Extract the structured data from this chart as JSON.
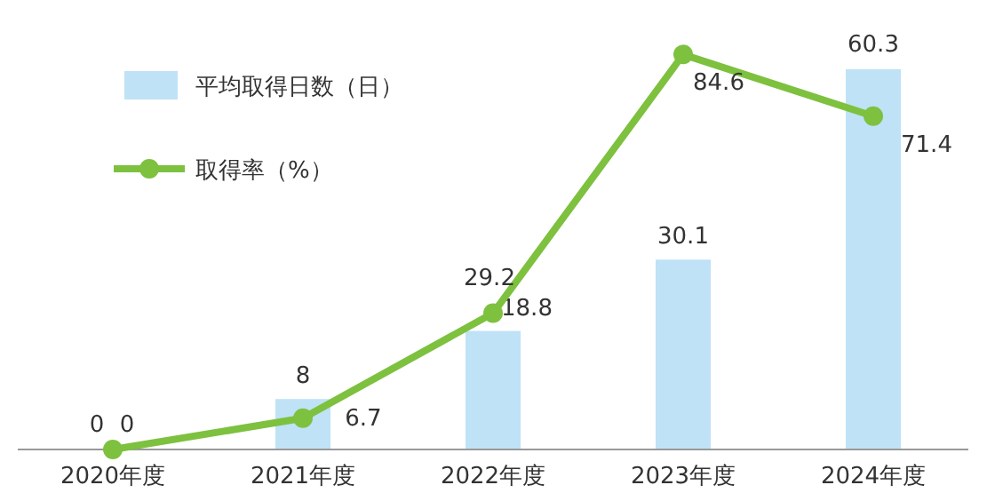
{
  "chart_data": {
    "type": "bar",
    "categories": [
      "2020年度",
      "2021年度",
      "2022年度",
      "2023年度",
      "2024年度"
    ],
    "series": [
      {
        "name": "平均取得日数（日）",
        "color": "#bfe2f6",
        "values": [
          0,
          8,
          18.8,
          30.1,
          60.3
        ]
      },
      {
        "name": "取得率（%）",
        "type": "line",
        "axis": "y2",
        "color": "#7dc13f",
        "values": [
          0,
          6.7,
          29.2,
          84.6,
          71.4
        ]
      }
    ],
    "data_labels": true,
    "legend": "top left",
    "marker": "circle",
    "grid": false
  }
}
